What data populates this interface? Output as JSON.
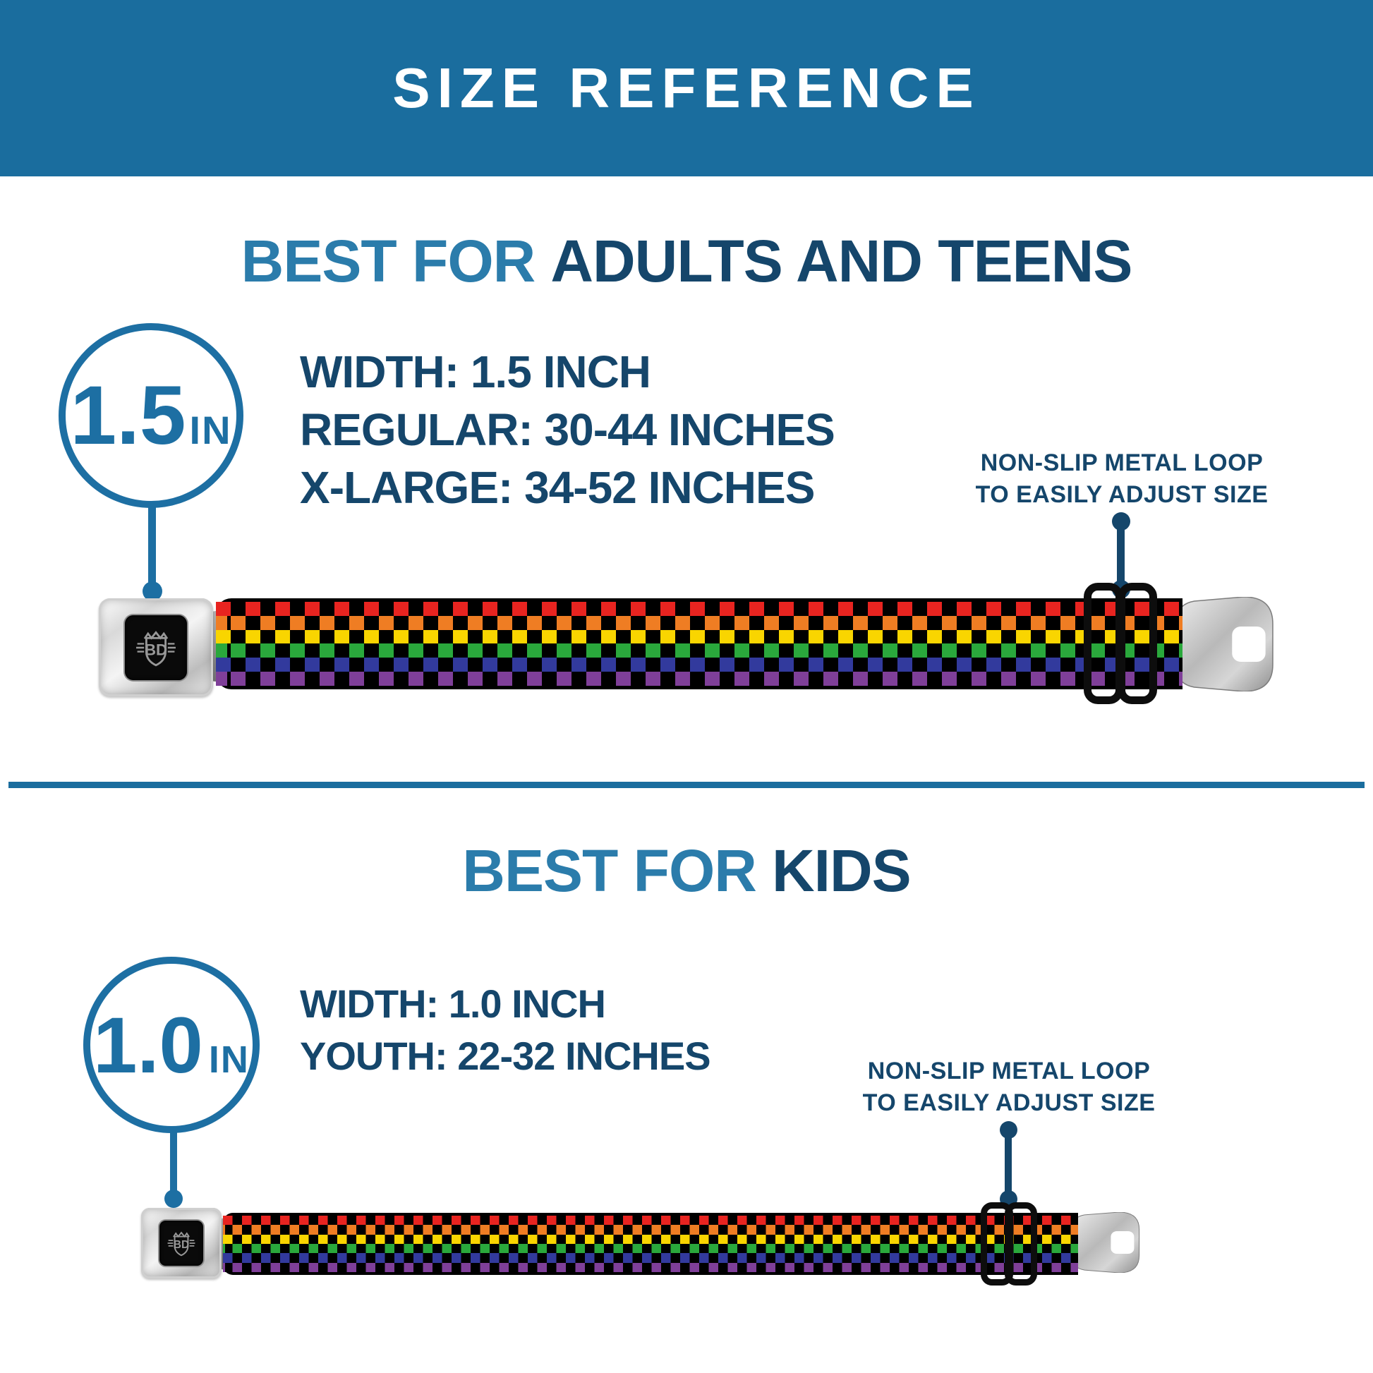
{
  "header": {
    "title": "SIZE REFERENCE"
  },
  "colors": {
    "header_bg": "#1a6d9e",
    "heading_light": "#2b7cab",
    "dark_navy": "#15466b",
    "accent_blue": "#1d6fa3",
    "divider": "#1a6d9e"
  },
  "sections": [
    {
      "heading_light": "BEST FOR",
      "heading_dark": "ADULTS AND TEENS",
      "badge": {
        "value": "1.5",
        "unit": "IN"
      },
      "specs": [
        "WIDTH: 1.5 INCH",
        "REGULAR: 30-44 INCHES",
        "X-LARGE: 34-52 INCHES"
      ],
      "callout_line1": "NON-SLIP METAL LOOP",
      "callout_line2": "TO EASILY ADJUST SIZE"
    },
    {
      "heading_light": "BEST FOR",
      "heading_dark": "KIDS",
      "badge": {
        "value": "1.0",
        "unit": "IN"
      },
      "specs": [
        "WIDTH: 1.0 INCH",
        "YOUTH: 22-32 INCHES"
      ],
      "callout_line1": "NON-SLIP METAL LOOP",
      "callout_line2": "TO EASILY ADJUST SIZE"
    }
  ],
  "belt": {
    "buckle_logo": "BD",
    "checker_colors": [
      "#e82420",
      "#ef7d23",
      "#f9d500",
      "#2aa83c",
      "#323a9d",
      "#7f3f99"
    ],
    "black": "#000000"
  }
}
